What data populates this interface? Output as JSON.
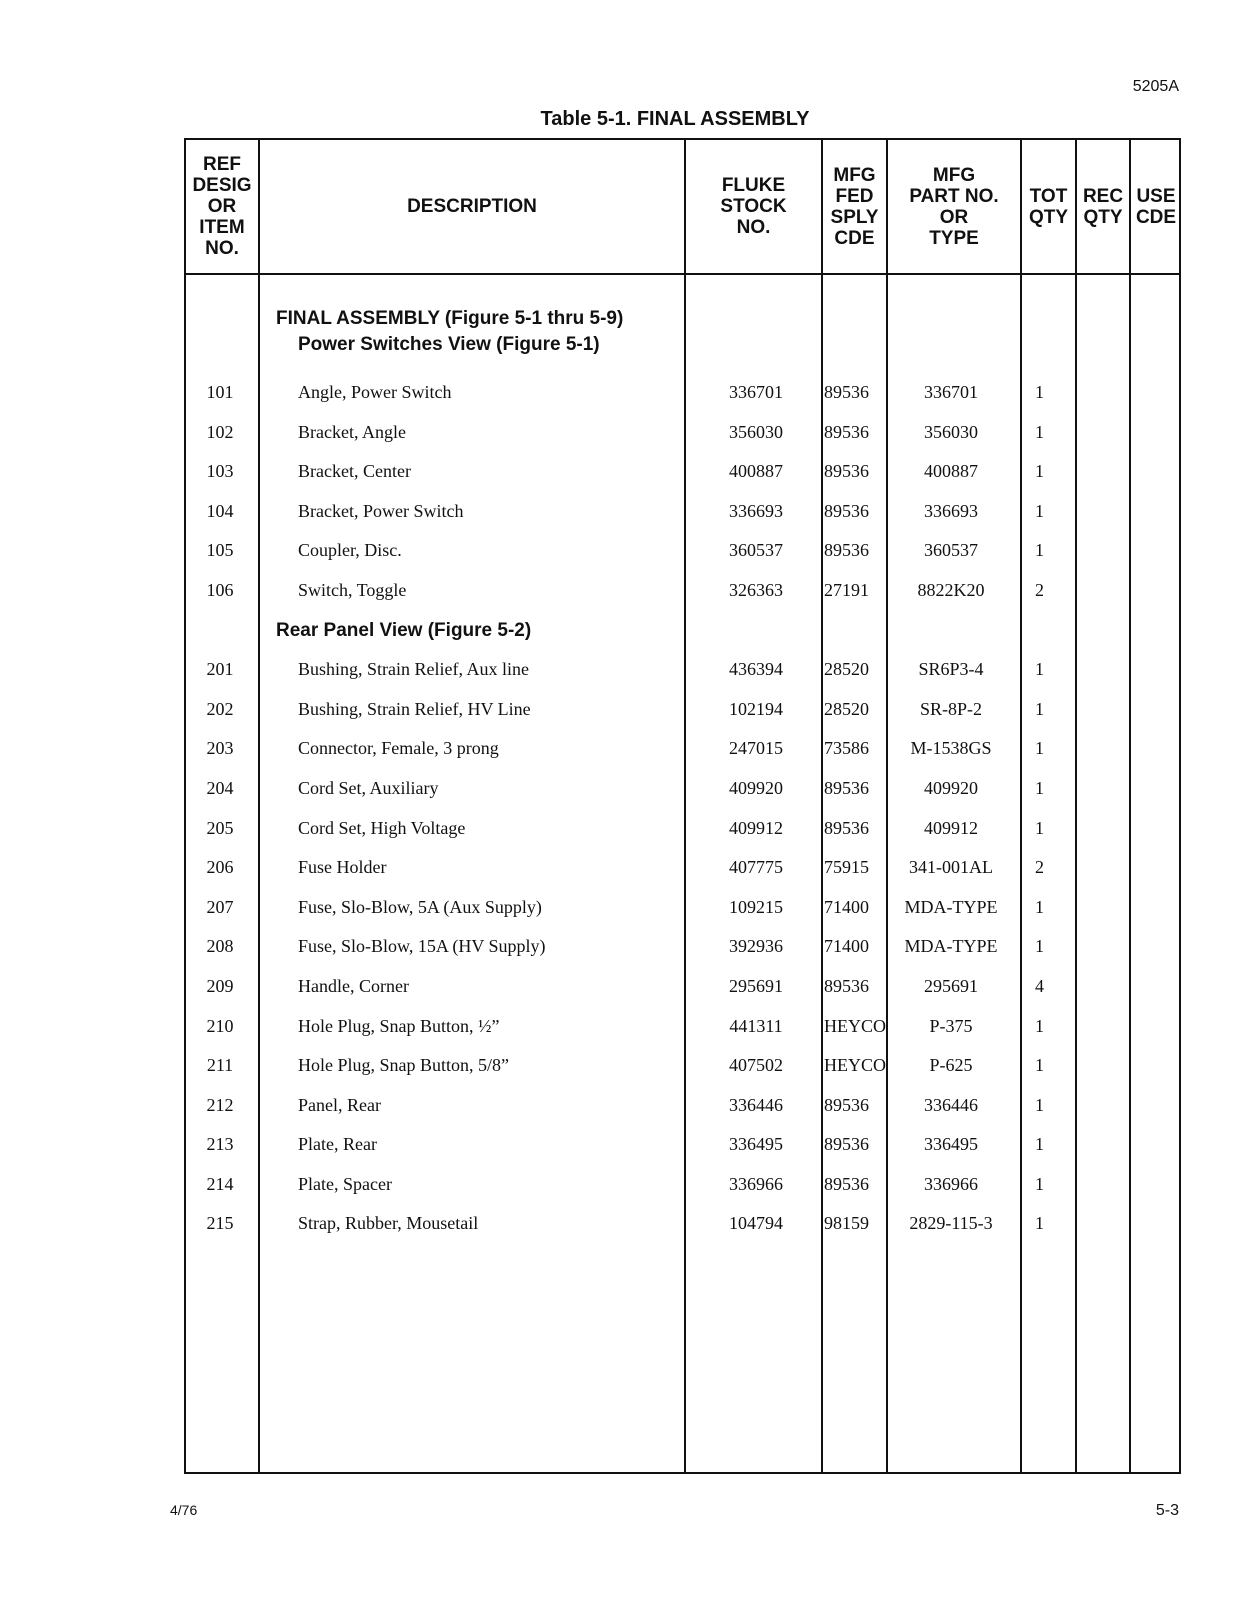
{
  "document_id": "5205A",
  "table_title": "Table 5-1.  FINAL ASSEMBLY",
  "columns": [
    "REF\nDESIG\nOR\nITEM\nNO.",
    "DESCRIPTION",
    "FLUKE\nSTOCK\nNO.",
    "MFG\nFED\nSPLY\nCDE",
    "MFG\nPART NO.\nOR\nTYPE",
    "TOT\nQTY",
    "REC\nQTY",
    "USE\nCDE"
  ],
  "section_title": "FINAL ASSEMBLY (Figure 5-1 thru 5-9)",
  "subsection_1": "Power Switches View (Figure 5-1)",
  "rows": [
    {
      "ref": "101",
      "desc": "Angle, Power Switch",
      "stock": "336701",
      "code": "89536",
      "part": "336701",
      "qty": "1"
    },
    {
      "ref": "102",
      "desc": "Bracket, Angle",
      "stock": "356030",
      "code": "89536",
      "part": "356030",
      "qty": "1"
    },
    {
      "ref": "103",
      "desc": "Bracket, Center",
      "stock": "400887",
      "code": "89536",
      "part": "400887",
      "qty": "1"
    },
    {
      "ref": "104",
      "desc": "Bracket, Power Switch",
      "stock": "336693",
      "code": "89536",
      "part": "336693",
      "qty": "1"
    },
    {
      "ref": "105",
      "desc": "Coupler, Disc.",
      "stock": "360537",
      "code": "89536",
      "part": "360537",
      "qty": "1"
    },
    {
      "ref": "106",
      "desc": "Switch, Toggle",
      "stock": "326363",
      "code": "27191",
      "part": "8822K20",
      "qty": "2"
    },
    {
      "subhead": "Rear Panel View (Figure 5-2)"
    },
    {
      "ref": "201",
      "desc": "Bushing, Strain Relief, Aux line",
      "stock": "436394",
      "code": "28520",
      "part": "SR6P3-4",
      "qty": "1"
    },
    {
      "ref": "202",
      "desc": "Bushing, Strain Relief, HV Line",
      "stock": "102194",
      "code": "28520",
      "part": "SR-8P-2",
      "qty": "1"
    },
    {
      "ref": "203",
      "desc": "Connector, Female, 3 prong",
      "stock": "247015",
      "code": "73586",
      "part": "M-1538GS",
      "qty": "1"
    },
    {
      "ref": "204",
      "desc": "Cord Set, Auxiliary",
      "stock": "409920",
      "code": "89536",
      "part": "409920",
      "qty": "1"
    },
    {
      "ref": "205",
      "desc": "Cord Set, High Voltage",
      "stock": "409912",
      "code": "89536",
      "part": "409912",
      "qty": "1"
    },
    {
      "ref": "206",
      "desc": "Fuse Holder",
      "stock": "407775",
      "code": "75915",
      "part": "341-001AL",
      "qty": "2"
    },
    {
      "ref": "207",
      "desc": "Fuse, Slo-Blow, 5A (Aux Supply)",
      "stock": "109215",
      "code": "71400",
      "part": "MDA-TYPE",
      "qty": "1"
    },
    {
      "ref": "208",
      "desc": "Fuse, Slo-Blow, 15A (HV Supply)",
      "stock": "392936",
      "code": "71400",
      "part": "MDA-TYPE",
      "qty": "1"
    },
    {
      "ref": "209",
      "desc": "Handle, Corner",
      "stock": "295691",
      "code": "89536",
      "part": "295691",
      "qty": "4"
    },
    {
      "ref": "210",
      "desc": "Hole Plug, Snap Button, ½”",
      "stock": "441311",
      "code": "HEYCO",
      "part": "P-375",
      "qty": "1"
    },
    {
      "ref": "211",
      "desc": "Hole Plug, Snap Button, 5/8”",
      "stock": "407502",
      "code": "HEYCO",
      "part": "P-625",
      "qty": "1"
    },
    {
      "ref": "212",
      "desc": "Panel, Rear",
      "stock": "336446",
      "code": "89536",
      "part": "336446",
      "qty": "1"
    },
    {
      "ref": "213",
      "desc": "Plate, Rear",
      "stock": "336495",
      "code": "89536",
      "part": "336495",
      "qty": "1"
    },
    {
      "ref": "214",
      "desc": "Plate, Spacer",
      "stock": "336966",
      "code": "89536",
      "part": "336966",
      "qty": "1"
    },
    {
      "ref": "215",
      "desc": "Strap, Rubber, Mousetail",
      "stock": "104794",
      "code": "98159",
      "part": "2829-115-3",
      "qty": "1"
    }
  ],
  "footer_date": "4/76",
  "page_number": "5-3"
}
